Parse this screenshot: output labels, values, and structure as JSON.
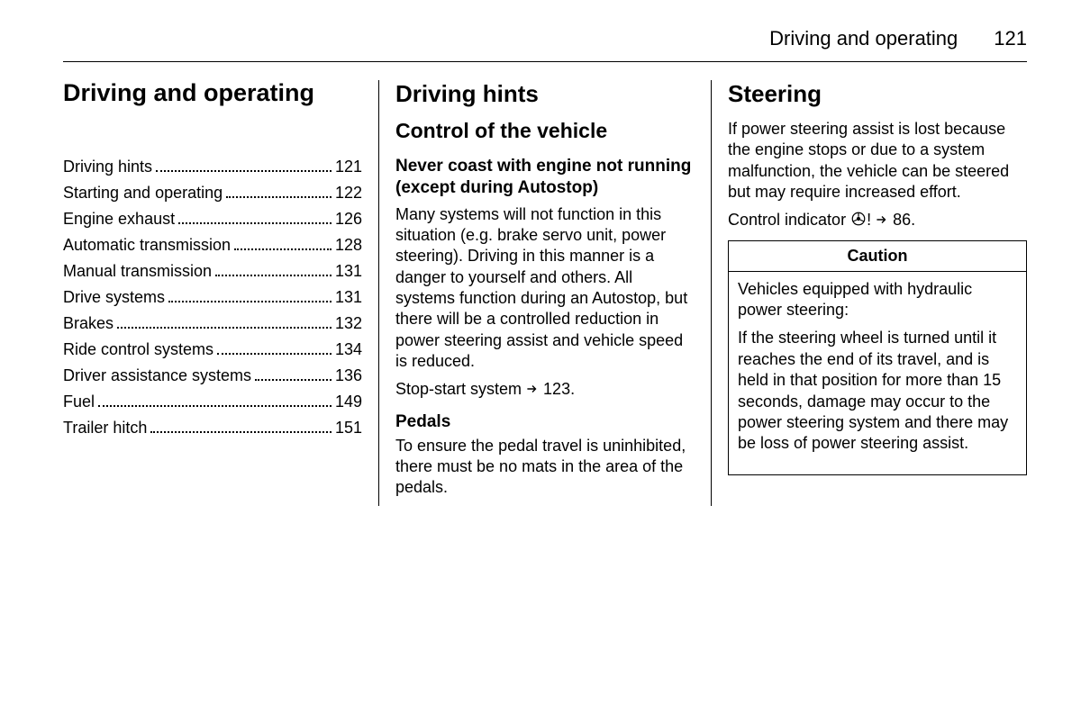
{
  "header": {
    "title": "Driving and operating",
    "page": "121"
  },
  "col1": {
    "title": "Driving and operating",
    "toc": [
      {
        "label": "Driving hints",
        "page": "121"
      },
      {
        "label": "Starting and operating",
        "page": "122"
      },
      {
        "label": "Engine exhaust",
        "page": "126"
      },
      {
        "label": "Automatic transmission",
        "page": "128"
      },
      {
        "label": "Manual transmission",
        "page": "131"
      },
      {
        "label": "Drive systems",
        "page": "131"
      },
      {
        "label": "Brakes",
        "page": "132"
      },
      {
        "label": "Ride control systems",
        "page": "134"
      },
      {
        "label": "Driver assistance systems",
        "page": "136"
      },
      {
        "label": "Fuel",
        "page": "149"
      },
      {
        "label": "Trailer hitch",
        "page": "151"
      }
    ]
  },
  "col2": {
    "h1": "Driving hints",
    "h2": "Control of the vehicle",
    "h3": "Never coast with engine not running (except during Autostop)",
    "p1": "Many systems will not function in this situation (e.g. brake servo unit, power steering). Driving in this manner is a danger to yourself and others. All systems function during an Autostop, but there will be a controlled reduction in power steering assist and vehicle speed is reduced.",
    "ref1_pre": "Stop-start system ",
    "ref1_post": " 123.",
    "h4": "Pedals",
    "p2": "To ensure the pedal travel is uninhibited, there must be no mats in the area of the pedals."
  },
  "col3": {
    "h1": "Steering",
    "p1": "If power steering assist is lost because the engine stops or due to a system malfunction, the vehicle can be steered but may require increased effort.",
    "ref_pre": "Control indicator ",
    "ref_post": " 86.",
    "caution_title": "Caution",
    "caution_p1": "Vehicles equipped with hydraulic power steering:",
    "caution_p2": "If the steering wheel is turned until it reaches the end of its travel, and is held in that position for more than 15 seconds, damage may occur to the power steering system and there may be loss of power steering assist."
  }
}
